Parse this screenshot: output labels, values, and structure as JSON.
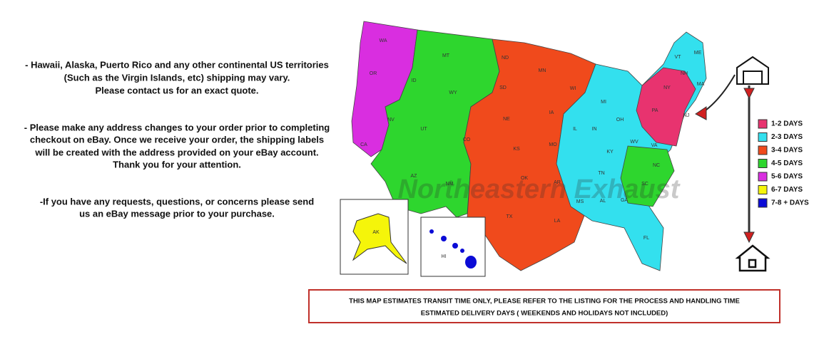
{
  "info": {
    "paragraphs": [
      [
        "- Hawaii, Alaska, Puerto Rico and any other continental US territories",
        "(Such as the Virgin Islands, etc) shipping may vary.",
        "Please contact us for an exact quote."
      ],
      [
        "- Please make any address changes to your order prior to completing",
        "checkout on eBay. Once we receive your order, the shipping labels",
        "will be created with the address provided on your eBay account.",
        "Thank you for your attention."
      ],
      [
        "-If you have any requests, questions, or concerns please send",
        "us an eBay message prior to your purchase."
      ]
    ]
  },
  "map": {
    "watermark": "Northeastern Exhaust",
    "states": [
      "WA",
      "OR",
      "CA",
      "ID",
      "NV",
      "MT",
      "WY",
      "UT",
      "AZ",
      "CO",
      "NM",
      "ND",
      "SD",
      "NE",
      "KS",
      "OK",
      "TX",
      "MN",
      "IA",
      "MO",
      "AR",
      "LA",
      "WI",
      "IL",
      "MS",
      "MI",
      "IN",
      "KY",
      "TN",
      "AL",
      "OH",
      "GA",
      "FL",
      "WV",
      "VA",
      "NC",
      "SC",
      "PA",
      "NY",
      "VT",
      "ME",
      "NH",
      "MA",
      "NJ",
      "AK",
      "HI"
    ]
  },
  "legend": {
    "items": [
      {
        "name": "1-2 DAYS",
        "color": "#e8336f"
      },
      {
        "name": "2-3 DAYS",
        "color": "#33e0ee"
      },
      {
        "name": "3-4 DAYS",
        "color": "#f04a1c"
      },
      {
        "name": "4-5 DAYS",
        "color": "#2ed62e"
      },
      {
        "name": "5-6 DAYS",
        "color": "#d92ee0"
      },
      {
        "name": "6-7 DAYS",
        "color": "#f5f50a"
      },
      {
        "name": "7-8 + DAYS",
        "color": "#0b0bd6"
      }
    ]
  },
  "notice": {
    "lines": [
      "THIS MAP ESTIMATES TRANSIT TIME ONLY, PLEASE REFER TO THE LISTING FOR THE PROCESS AND HANDLING TIME",
      "ESTIMATED DELIVERY DAYS ( WEEKENDS AND HOLIDAYS NOT INCLUDED)"
    ]
  }
}
